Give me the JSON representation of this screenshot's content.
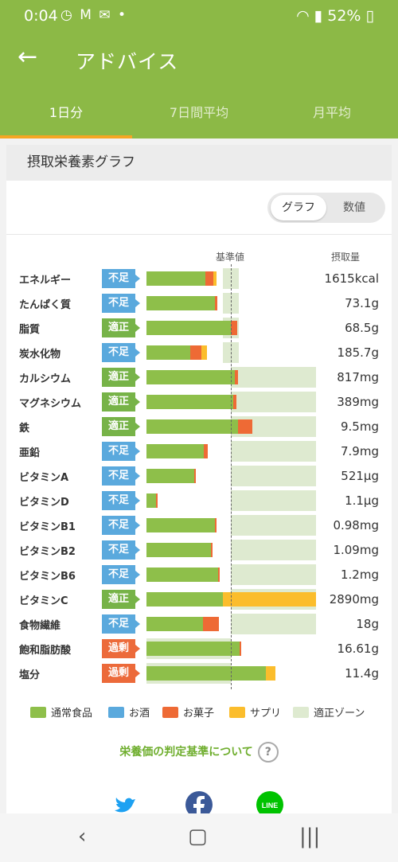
{
  "status": {
    "time": "0:04",
    "icons": "◷ M ✉ •",
    "battery": "52%"
  },
  "appbar": {
    "title": "アドバイス",
    "back_icon": "arrow-left-icon"
  },
  "tabs": [
    {
      "label": "1日分"
    },
    {
      "label": "7日間平均"
    },
    {
      "label": "月平均"
    }
  ],
  "card": {
    "title": "摂取栄養素グラフ"
  },
  "toggle": {
    "graph": "グラフ",
    "number": "数値"
  },
  "columns": {
    "standard": "基準値",
    "intake": "摂取量"
  },
  "colors": {
    "normal": "#8ebf4a",
    "alcohol": "#5aa9dd",
    "snack": "#ee6a35",
    "supplement": "#fbbd2c",
    "zone": "#deead0"
  },
  "nutrients": [
    {
      "name": "エネルギー",
      "status": "不足",
      "kind": "low",
      "value": "1615kcal"
    },
    {
      "name": "たんぱく質",
      "status": "不足",
      "kind": "low",
      "value": "73.1g"
    },
    {
      "name": "脂質",
      "status": "適正",
      "kind": "ok",
      "value": "68.5g"
    },
    {
      "name": "炭水化物",
      "status": "不足",
      "kind": "low",
      "value": "185.7g"
    },
    {
      "name": "カルシウム",
      "status": "適正",
      "kind": "ok",
      "value": "817mg"
    },
    {
      "name": "マグネシウム",
      "status": "適正",
      "kind": "ok",
      "value": "389mg"
    },
    {
      "name": "鉄",
      "status": "適正",
      "kind": "ok",
      "value": "9.5mg"
    },
    {
      "name": "亜鉛",
      "status": "不足",
      "kind": "low",
      "value": "7.9mg"
    },
    {
      "name": "ビタミンA",
      "status": "不足",
      "kind": "low",
      "value": "521μg"
    },
    {
      "name": "ビタミンD",
      "status": "不足",
      "kind": "low",
      "value": "1.1μg"
    },
    {
      "name": "ビタミンB1",
      "status": "不足",
      "kind": "low",
      "value": "0.98mg"
    },
    {
      "name": "ビタミンB2",
      "status": "不足",
      "kind": "low",
      "value": "1.09mg"
    },
    {
      "name": "ビタミンB6",
      "status": "不足",
      "kind": "low",
      "value": "1.2mg"
    },
    {
      "name": "ビタミンC",
      "status": "適正",
      "kind": "ok",
      "value": "2890mg"
    },
    {
      "name": "食物繊維",
      "status": "不足",
      "kind": "low",
      "value": "18g"
    },
    {
      "name": "飽和脂肪酸",
      "status": "過剰",
      "kind": "over",
      "value": "16.61g"
    },
    {
      "name": "塩分",
      "status": "過剰",
      "kind": "over",
      "value": "11.4g"
    }
  ],
  "legend": [
    {
      "label": "通常食品",
      "color": "#8ebf4a"
    },
    {
      "label": "お酒",
      "color": "#5aa9dd"
    },
    {
      "label": "お菓子",
      "color": "#ee6a35"
    },
    {
      "label": "サプリ",
      "color": "#fbbd2c"
    },
    {
      "label": "適正ゾーン",
      "color": "#deead0"
    }
  ],
  "help_link": "栄養価の判定基準について",
  "social": [
    {
      "icon": "twitter-icon",
      "color": "#1da1f2"
    },
    {
      "icon": "facebook-icon",
      "color": "#3b5998"
    },
    {
      "icon": "line-icon",
      "color": "#00c300",
      "label": "LINE"
    }
  ]
}
